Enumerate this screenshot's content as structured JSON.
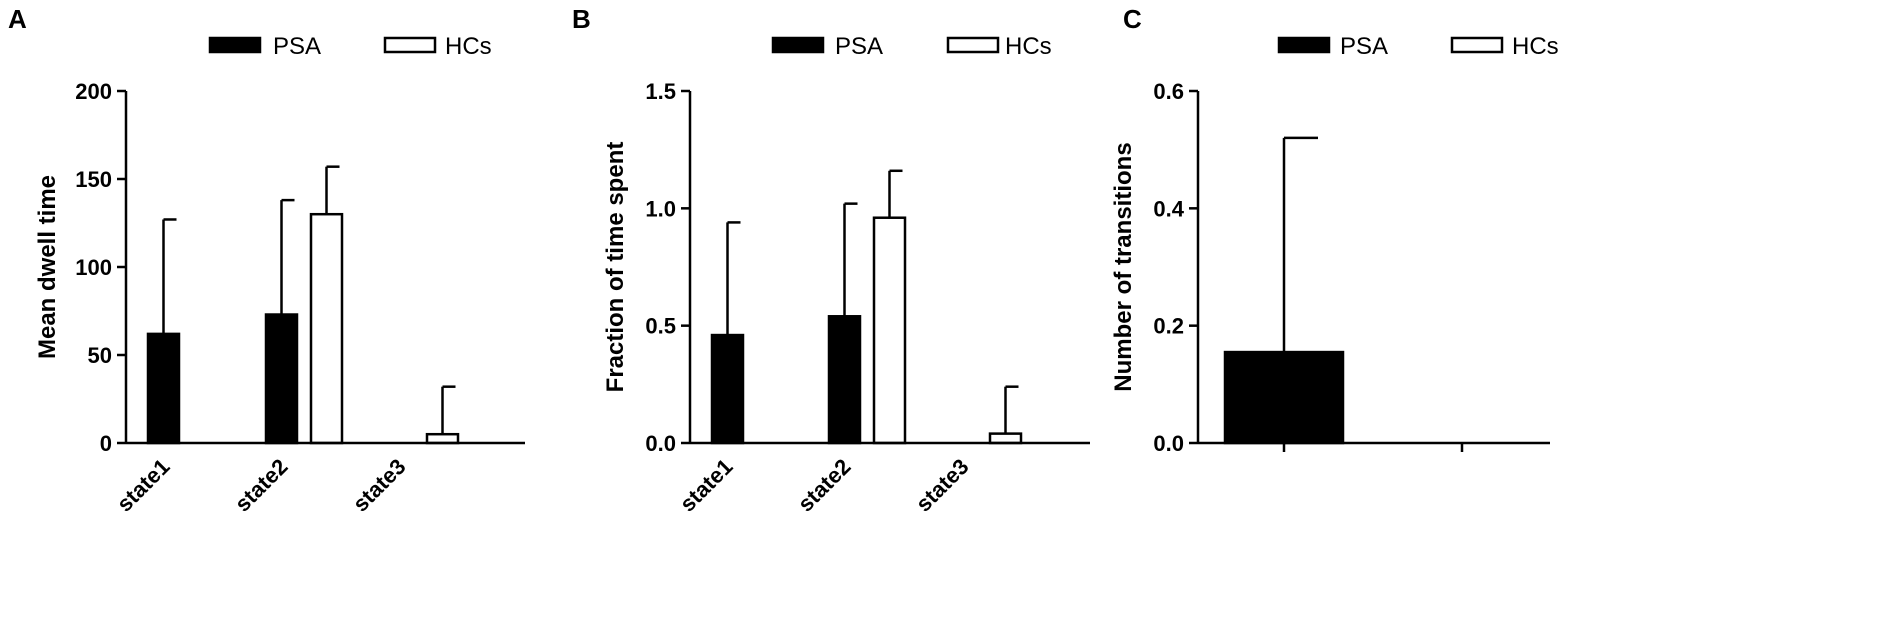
{
  "chart_data": [
    {
      "panel": "A",
      "type": "bar",
      "categories": [
        "state1",
        "state2",
        "state3"
      ],
      "series": [
        {
          "name": "PSA",
          "values": [
            62,
            73,
            0
          ],
          "errors": [
            127,
            138,
            0
          ],
          "color": "#000000"
        },
        {
          "name": "HCs",
          "values": [
            0,
            130,
            5
          ],
          "errors": [
            0,
            157,
            32
          ],
          "color": "#ffffff"
        }
      ],
      "xlabel": "",
      "ylabel": "Mean dwell time",
      "ylim": [
        0,
        200
      ],
      "yticks": [
        "0",
        "50",
        "100",
        "150",
        "200"
      ],
      "legend": "top",
      "grid": false
    },
    {
      "panel": "B",
      "type": "bar",
      "categories": [
        "state1",
        "state2",
        "state3"
      ],
      "series": [
        {
          "name": "PSA",
          "values": [
            0.46,
            0.54,
            0
          ],
          "errors": [
            0.94,
            1.02,
            0
          ],
          "color": "#000000"
        },
        {
          "name": "HCs",
          "values": [
            0,
            0.96,
            0.04
          ],
          "errors": [
            0,
            1.16,
            0.24
          ],
          "color": "#ffffff"
        }
      ],
      "xlabel": "",
      "ylabel": "Fraction of time spent",
      "ylim": [
        0,
        1.5
      ],
      "yticks": [
        "0.0",
        "0.5",
        "1.0",
        "1.5"
      ],
      "legend": "top",
      "grid": false
    },
    {
      "panel": "C",
      "type": "bar",
      "categories": [
        "",
        ""
      ],
      "series": [
        {
          "name": "PSA",
          "values": [
            0.155,
            0
          ],
          "errors": [
            0.52,
            0
          ],
          "color": "#000000"
        },
        {
          "name": "HCs",
          "values": [
            0,
            0
          ],
          "errors": [
            0,
            0
          ],
          "color": "#ffffff"
        }
      ],
      "xlabel": "",
      "ylabel": "Number of transitions",
      "ylim": [
        0,
        0.6
      ],
      "yticks": [
        "0.0",
        "0.2",
        "0.4",
        "0.6"
      ],
      "legend": "top",
      "grid": false
    }
  ]
}
